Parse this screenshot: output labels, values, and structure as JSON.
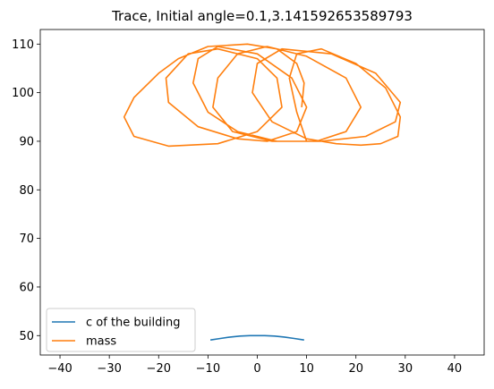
{
  "chart_data": {
    "type": "line",
    "title": "Trace, Initial angle=0.1,3.141592653589793",
    "xlabel": "",
    "ylabel": "",
    "xlim": [
      -44,
      46
    ],
    "ylim": [
      46,
      113
    ],
    "x_ticks": [
      -40,
      -30,
      -20,
      -10,
      0,
      10,
      20,
      30,
      40
    ],
    "y_ticks": [
      50,
      60,
      70,
      80,
      90,
      100,
      110
    ],
    "grid": false,
    "legend_position": "lower-left",
    "series": [
      {
        "name": "c of the building",
        "color": "#1f77b4",
        "x": [
          -9.5,
          -7.5,
          -5.5,
          -3.5,
          -1.5,
          0,
          1.5,
          3.5,
          5.5,
          7.5,
          9.5
        ],
        "y": [
          49.1,
          49.4,
          49.7,
          49.9,
          50.0,
          50.0,
          50.0,
          49.9,
          49.7,
          49.4,
          49.1
        ]
      },
      {
        "name": "mass",
        "color": "#ff7f0e",
        "x": [
          9.0,
          9.5,
          8.0,
          4.0,
          -2.0,
          -10.0,
          -16.0,
          -20.0,
          -25.0,
          -27.0,
          -25.0,
          -18.0,
          -8.0,
          0.0,
          5.0,
          4.0,
          0.0,
          -8.0,
          -14.0,
          -18.5,
          -18.0,
          -12.0,
          -4.0,
          2.0,
          8.0,
          10.0,
          7.0,
          0.0,
          -8.0,
          -12.0,
          -13.0,
          -10.0,
          -4.0,
          4.0,
          12.0,
          18.0,
          21.0,
          18.0,
          10.0,
          2.0,
          -4.0,
          -8.0,
          -9.0,
          -5.0,
          3.0,
          13.0,
          22.0,
          28.0,
          29.0,
          24.0,
          15.0,
          5.0,
          0.0,
          -1.0,
          3.0,
          10.0,
          16.0,
          21.0,
          25.0,
          28.5,
          29.0,
          26.0,
          20.0,
          13.0,
          8.0,
          6.5,
          8.0,
          10.0
        ],
        "y": [
          97.0,
          102.0,
          106.0,
          109.0,
          110.0,
          109.5,
          107.0,
          104.0,
          99.0,
          95.0,
          91.0,
          89.0,
          89.5,
          92.0,
          97.0,
          103.0,
          107.0,
          109.0,
          108.0,
          103.0,
          98.0,
          93.0,
          90.5,
          90.0,
          92.0,
          97.0,
          103.0,
          108.0,
          109.5,
          107.0,
          102.0,
          96.0,
          92.0,
          90.0,
          90.0,
          92.0,
          97.0,
          103.0,
          107.5,
          109.5,
          108.0,
          103.0,
          97.0,
          92.0,
          90.0,
          90.0,
          91.0,
          94.0,
          98.0,
          104.0,
          108.0,
          109.0,
          106.0,
          100.0,
          94.0,
          90.5,
          89.5,
          89.2,
          89.5,
          91.0,
          95.0,
          101.0,
          106.0,
          109.0,
          108.0,
          103.0,
          96.0,
          90.0
        ]
      }
    ]
  }
}
